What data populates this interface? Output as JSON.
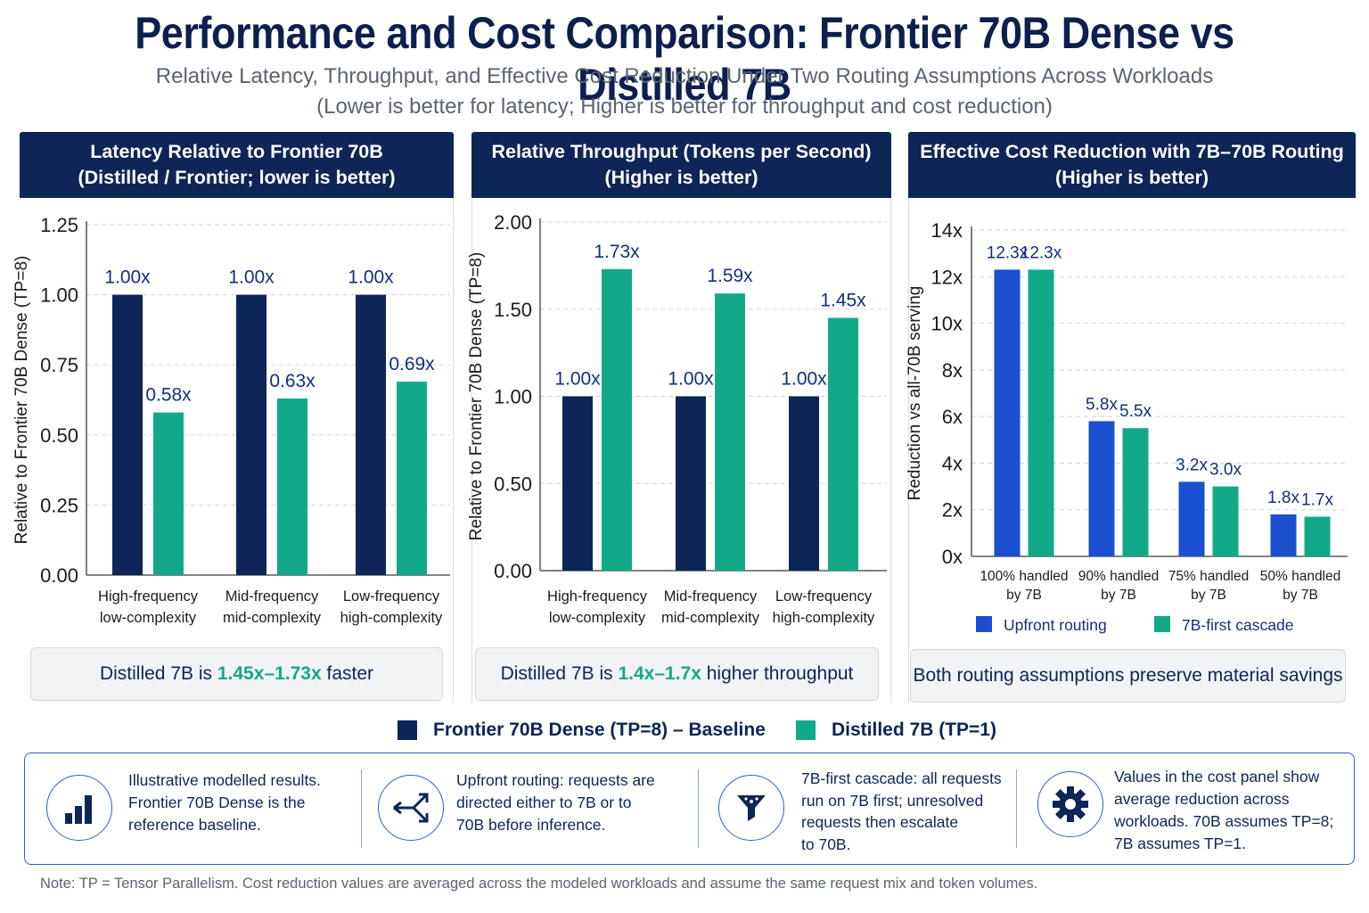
{
  "title": "Performance and Cost Comparison: Frontier 70B Dense vs Distilled 7B",
  "subtitle_line1": "Relative Latency, Throughput, and Effective Cost Reduction Under Two Routing Assumptions Across Workloads",
  "subtitle_line2": "(Lower is better for latency; Higher is better for throughput and cost reduction)",
  "colors": {
    "navy": "#0d2557",
    "teal": "#12a989",
    "blue": "#1a4fd0",
    "header_bg": "#0d2557"
  },
  "panels": {
    "latency": {
      "header_line1": "Latency Relative to Frontier 70B",
      "header_line2": "(Distilled / Frontier; lower is better)",
      "callout_prefix": "Distilled 7B is ",
      "callout_accent": "1.45x–1.73x",
      "callout_suffix": " faster"
    },
    "throughput": {
      "header_line1": "Relative Throughput (Tokens per Second)",
      "header_line2": "(Higher is better)",
      "callout_prefix": "Distilled 7B is ",
      "callout_accent": "1.4x–1.7x",
      "callout_suffix": " higher throughput"
    },
    "cost": {
      "header_line1": "Effective Cost Reduction with 7B–70B Routing",
      "header_line2": "(Higher is better)",
      "callout_text": "Both routing assumptions preserve material savings"
    }
  },
  "chart_data": [
    {
      "type": "bar",
      "ylabel": "Relative to Frontier 70B Dense (TP=8)",
      "ylim": [
        0,
        1.25
      ],
      "yticks": [
        "0.00",
        "0.25",
        "0.50",
        "0.75",
        "1.00",
        "1.25"
      ],
      "categories": [
        [
          "High-frequency",
          "low-complexity"
        ],
        [
          "Mid-frequency",
          "mid-complexity"
        ],
        [
          "Low-frequency",
          "high-complexity"
        ]
      ],
      "series": [
        {
          "name": "Frontier 70B Dense (TP=8) – Baseline",
          "values": [
            1.0,
            1.0,
            1.0
          ],
          "labels": [
            "1.00x",
            "1.00x",
            "1.00x"
          ],
          "color": "#0d2557"
        },
        {
          "name": "Distilled 7B (TP=1)",
          "values": [
            0.58,
            0.63,
            0.69
          ],
          "labels": [
            "0.58x",
            "0.63x",
            "0.69x"
          ],
          "color": "#12a989"
        }
      ],
      "grid": true
    },
    {
      "type": "bar",
      "ylabel": "Relative to Frontier 70B Dense (TP=8)",
      "ylim": [
        0,
        2.0
      ],
      "yticks": [
        "0.00",
        "0.50",
        "1.00",
        "1.50",
        "2.00"
      ],
      "categories": [
        [
          "High-frequency",
          "low-complexity"
        ],
        [
          "Mid-frequency",
          "mid-complexity"
        ],
        [
          "Low-frequency",
          "high-complexity"
        ]
      ],
      "series": [
        {
          "name": "Frontier 70B Dense (TP=8) – Baseline",
          "values": [
            1.0,
            1.0,
            1.0
          ],
          "labels": [
            "1.00x",
            "1.00x",
            "1.00x"
          ],
          "color": "#0d2557"
        },
        {
          "name": "Distilled 7B (TP=1)",
          "values": [
            1.73,
            1.59,
            1.45
          ],
          "labels": [
            "1.73x",
            "1.59x",
            "1.45x"
          ],
          "color": "#12a989"
        }
      ],
      "grid": true
    },
    {
      "type": "bar",
      "ylabel": "Reduction vs all-70B serving",
      "ylim": [
        0,
        14
      ],
      "yticks": [
        "0x",
        "2x",
        "4x",
        "6x",
        "8x",
        "10x",
        "12x",
        "14x"
      ],
      "categories": [
        [
          "100% handled",
          "by 7B"
        ],
        [
          "90% handled",
          "by 7B"
        ],
        [
          "75% handled",
          "by 7B"
        ],
        [
          "50% handled",
          "by 7B"
        ]
      ],
      "series": [
        {
          "name": "Upfront routing",
          "values": [
            12.3,
            5.8,
            3.2,
            1.8
          ],
          "labels": [
            "12.3x",
            "5.8x",
            "3.2x",
            "1.8x"
          ],
          "color": "#1a4fd0"
        },
        {
          "name": "7B-first cascade",
          "values": [
            12.3,
            5.5,
            3.0,
            1.7
          ],
          "labels": [
            "12.3x",
            "5.5x",
            "3.0x",
            "1.7x"
          ],
          "color": "#12a989"
        }
      ],
      "legend": "bottom",
      "grid": true
    }
  ],
  "legend": {
    "baseline": "Frontier 70B Dense (TP=8) – Baseline",
    "distilled": "Distilled 7B (TP=1)"
  },
  "info": [
    {
      "icon": "bar-chart-icon",
      "lines": [
        "Illustrative modelled results.",
        "Frontier 70B Dense is the",
        "reference baseline."
      ]
    },
    {
      "icon": "routing-arrows-icon",
      "lines": [
        "Upfront routing: requests are",
        "directed either to 7B or to",
        "70B before inference."
      ]
    },
    {
      "icon": "funnel-icon",
      "lines": [
        "7B-first cascade: all requests",
        "run on 7B first; unresolved",
        "requests then escalate",
        "to 70B."
      ]
    },
    {
      "icon": "gear-icon",
      "lines": [
        "Values in the cost panel show",
        "average reduction across",
        "workloads. 70B assumes TP=8;",
        "7B assumes TP=1."
      ]
    }
  ],
  "footnote": "Note: TP = Tensor Parallelism. Cost reduction values are averaged across the modeled workloads and assume the same request mix and token volumes."
}
